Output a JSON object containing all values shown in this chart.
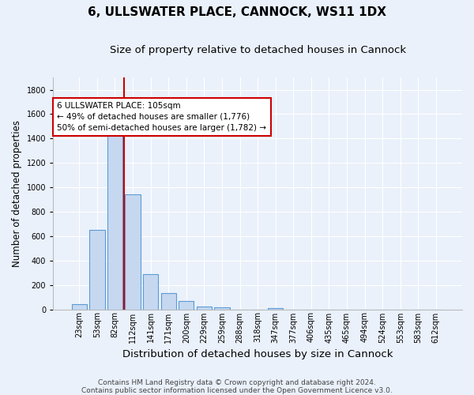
{
  "title": "6, ULLSWATER PLACE, CANNOCK, WS11 1DX",
  "subtitle": "Size of property relative to detached houses in Cannock",
  "xlabel": "Distribution of detached houses by size in Cannock",
  "ylabel": "Number of detached properties",
  "bin_labels": [
    "23sqm",
    "53sqm",
    "82sqm",
    "112sqm",
    "141sqm",
    "171sqm",
    "200sqm",
    "229sqm",
    "259sqm",
    "288sqm",
    "318sqm",
    "347sqm",
    "377sqm",
    "406sqm",
    "435sqm",
    "465sqm",
    "494sqm",
    "524sqm",
    "553sqm",
    "583sqm",
    "612sqm"
  ],
  "bar_values": [
    40,
    650,
    1480,
    940,
    290,
    130,
    65,
    22,
    15,
    0,
    0,
    10,
    0,
    0,
    0,
    0,
    0,
    0,
    0,
    0,
    0
  ],
  "bar_color": "#c5d8f0",
  "bar_edge_color": "#5b9bd5",
  "background_color": "#eaf1fb",
  "grid_color": "#ffffff",
  "vline_color": "#cc0000",
  "annotation_line1": "6 ULLSWATER PLACE: 105sqm",
  "annotation_line2": "← 49% of detached houses are smaller (1,776)",
  "annotation_line3": "50% of semi-detached houses are larger (1,782) →",
  "annotation_box_color": "#ffffff",
  "annotation_box_edge": "#cc0000",
  "ylim": [
    0,
    1900
  ],
  "yticks": [
    0,
    200,
    400,
    600,
    800,
    1000,
    1200,
    1400,
    1600,
    1800
  ],
  "footnote1": "Contains HM Land Registry data © Crown copyright and database right 2024.",
  "footnote2": "Contains public sector information licensed under the Open Government Licence v3.0.",
  "title_fontsize": 11,
  "subtitle_fontsize": 9.5,
  "xlabel_fontsize": 9.5,
  "ylabel_fontsize": 8.5,
  "tick_fontsize": 7,
  "annotation_fontsize": 7.5,
  "footnote_fontsize": 6.5
}
